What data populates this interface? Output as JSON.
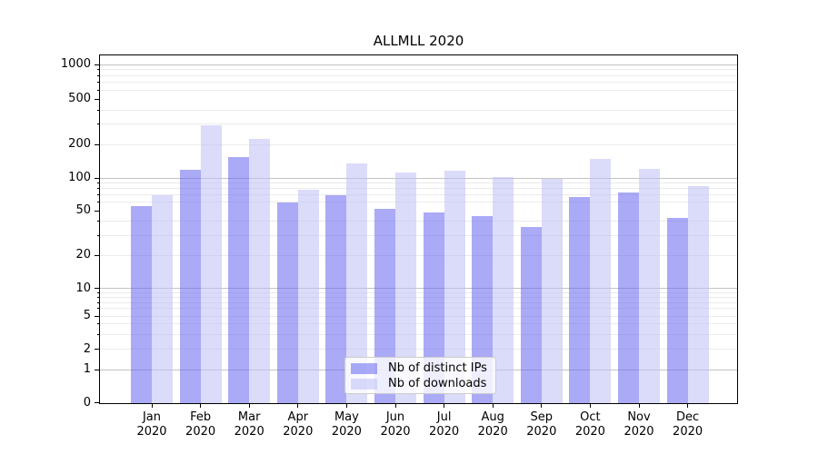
{
  "title": "ALLMLL 2020",
  "chart_data": {
    "type": "bar",
    "title": "ALLMLL 2020",
    "categories": [
      "Jan",
      "Feb",
      "Mar",
      "Apr",
      "May",
      "Jun",
      "Jul",
      "Aug",
      "Sep",
      "Oct",
      "Nov",
      "Dec"
    ],
    "category_year": "2020",
    "series": [
      {
        "name": "Nb of distinct IPs",
        "color": "#a7a7f5",
        "rgba": "rgba(100,100,240,0.55)",
        "values": [
          55,
          118,
          155,
          60,
          69,
          52,
          48,
          45,
          36,
          67,
          74,
          43
        ]
      },
      {
        "name": "Nb of downloads",
        "color": "#dbdbf9",
        "rgba": "rgba(190,190,245,0.55)",
        "values": [
          70,
          294,
          222,
          78,
          135,
          112,
          116,
          101,
          99,
          148,
          120,
          84
        ]
      }
    ],
    "yscale": "symlog",
    "yticks": [
      0,
      1,
      2,
      5,
      10,
      20,
      50,
      100,
      200,
      500,
      1000
    ],
    "ylim": [
      0,
      1200
    ],
    "xlabel": "",
    "ylabel": "",
    "grid": true,
    "grid_over_bars": true,
    "legend_position": "lower center",
    "colors": {
      "major_gridline": "#c3c3c3",
      "minor_gridline": "#ebebeb",
      "axis": "#000000",
      "background": "#ffffff"
    }
  }
}
